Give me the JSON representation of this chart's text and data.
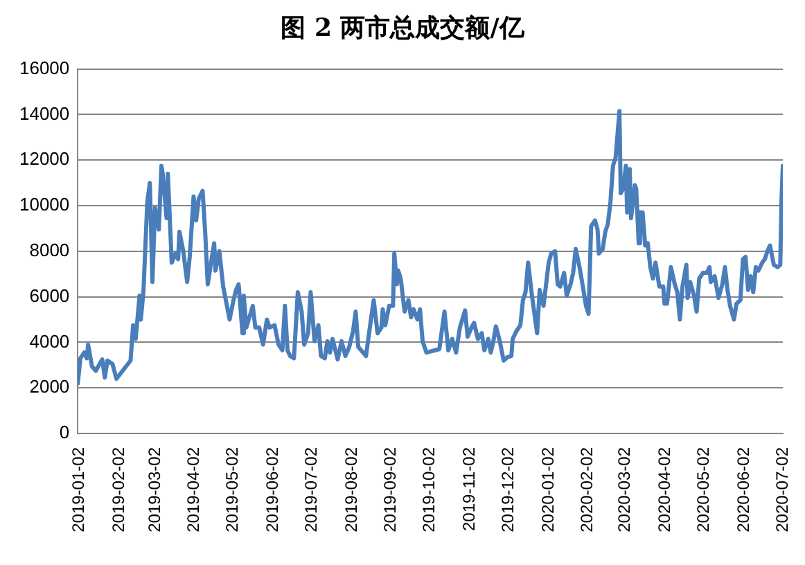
{
  "chart_data": {
    "type": "line",
    "title": "图 2 两市总成交额/亿",
    "x": [
      "2019-01-02",
      "2019-01-04",
      "2019-01-07",
      "2019-01-09",
      "2019-01-10",
      "2019-01-13",
      "2019-01-16",
      "2019-01-21",
      "2019-01-23",
      "2019-01-25",
      "2019-01-29",
      "2019-02-01",
      "2019-02-12",
      "2019-02-14",
      "2019-02-16",
      "2019-02-19",
      "2019-02-20",
      "2019-02-22",
      "2019-02-25",
      "2019-02-27",
      "2019-03-01",
      "2019-03-03",
      "2019-03-06",
      "2019-03-08",
      "2019-03-09",
      "2019-03-12",
      "2019-03-13",
      "2019-03-16",
      "2019-03-19",
      "2019-03-21",
      "2019-03-22",
      "2019-03-25",
      "2019-03-28",
      "2019-03-30",
      "2019-04-02",
      "2019-04-04",
      "2019-04-06",
      "2019-04-09",
      "2019-04-11",
      "2019-04-13",
      "2019-04-16",
      "2019-04-18",
      "2019-04-19",
      "2019-04-22",
      "2019-04-25",
      "2019-04-30",
      "2019-05-03",
      "2019-05-05",
      "2019-05-07",
      "2019-05-10",
      "2019-05-11",
      "2019-05-13",
      "2019-05-18",
      "2019-05-20",
      "2019-05-23",
      "2019-05-26",
      "2019-05-29",
      "2019-05-31",
      "2019-06-04",
      "2019-06-07",
      "2019-06-10",
      "2019-06-12",
      "2019-06-14",
      "2019-06-16",
      "2019-06-19",
      "2019-06-22",
      "2019-06-25",
      "2019-06-27",
      "2019-06-30",
      "2019-07-02",
      "2019-07-05",
      "2019-07-08",
      "2019-07-10",
      "2019-07-13",
      "2019-07-15",
      "2019-07-17",
      "2019-07-19",
      "2019-07-23",
      "2019-07-26",
      "2019-07-29",
      "2019-08-01",
      "2019-08-04",
      "2019-08-06",
      "2019-08-08",
      "2019-08-14",
      "2019-08-17",
      "2019-08-20",
      "2019-08-23",
      "2019-08-26",
      "2019-08-27",
      "2019-08-29",
      "2019-09-01",
      "2019-09-04",
      "2019-09-05",
      "2019-09-07",
      "2019-09-08",
      "2019-09-10",
      "2019-09-13",
      "2019-09-16",
      "2019-09-18",
      "2019-09-20",
      "2019-09-23",
      "2019-09-25",
      "2019-09-27",
      "2019-09-30",
      "2019-10-10",
      "2019-10-14",
      "2019-10-17",
      "2019-10-20",
      "2019-10-23",
      "2019-10-26",
      "2019-10-30",
      "2019-11-01",
      "2019-11-04",
      "2019-11-06",
      "2019-11-09",
      "2019-11-12",
      "2019-11-14",
      "2019-11-17",
      "2019-11-19",
      "2019-11-21",
      "2019-11-23",
      "2019-11-26",
      "2019-11-29",
      "2019-12-02",
      "2019-12-05",
      "2019-12-06",
      "2019-12-09",
      "2019-12-12",
      "2019-12-14",
      "2019-12-16",
      "2019-12-18",
      "2019-12-21",
      "2019-12-25",
      "2019-12-27",
      "2019-12-30",
      "2020-01-01",
      "2020-01-03",
      "2020-01-05",
      "2020-01-08",
      "2020-01-10",
      "2020-01-12",
      "2020-01-15",
      "2020-01-17",
      "2020-01-20",
      "2020-01-22",
      "2020-01-24",
      "2020-01-27",
      "2020-01-30",
      "2020-02-01",
      "2020-02-03",
      "2020-02-05",
      "2020-02-08",
      "2020-02-10",
      "2020-02-11",
      "2020-02-14",
      "2020-02-16",
      "2020-02-18",
      "2020-02-20",
      "2020-02-22",
      "2020-02-24",
      "2020-02-27",
      "2020-02-28",
      "2020-03-01",
      "2020-03-03",
      "2020-03-04",
      "2020-03-06",
      "2020-03-07",
      "2020-03-10",
      "2020-03-11",
      "2020-03-13",
      "2020-03-14",
      "2020-03-16",
      "2020-03-18",
      "2020-03-20",
      "2020-03-22",
      "2020-03-24",
      "2020-03-26",
      "2020-03-29",
      "2020-04-01",
      "2020-04-02",
      "2020-04-04",
      "2020-04-07",
      "2020-04-10",
      "2020-04-12",
      "2020-04-14",
      "2020-04-16",
      "2020-04-19",
      "2020-04-20",
      "2020-04-22",
      "2020-04-25",
      "2020-04-27",
      "2020-04-29",
      "2020-05-02",
      "2020-05-05",
      "2020-05-07",
      "2020-05-08",
      "2020-05-11",
      "2020-05-14",
      "2020-05-17",
      "2020-05-19",
      "2020-05-21",
      "2020-05-23",
      "2020-05-26",
      "2020-05-28",
      "2020-05-31",
      "2020-06-02",
      "2020-06-04",
      "2020-06-06",
      "2020-06-08",
      "2020-06-10",
      "2020-06-12",
      "2020-06-14",
      "2020-06-17",
      "2020-06-19",
      "2020-06-21",
      "2020-06-23",
      "2020-06-26",
      "2020-06-29",
      "2020-07-01",
      "2020-07-02",
      "2020-07-03"
    ],
    "series": [
      {
        "color": "#4a7ebb",
        "values": [
          2200,
          3300,
          3550,
          3300,
          3900,
          2950,
          2750,
          3250,
          2450,
          3200,
          3050,
          2400,
          3200,
          4750,
          4150,
          6050,
          5000,
          6200,
          10150,
          11000,
          6650,
          9900,
          8950,
          11750,
          11400,
          9450,
          11400,
          7500,
          7900,
          7650,
          8850,
          8000,
          6650,
          7750,
          10400,
          9350,
          10300,
          10650,
          8850,
          6550,
          7650,
          8350,
          7150,
          8000,
          6450,
          5000,
          5850,
          6300,
          6550,
          4400,
          6050,
          4650,
          5600,
          4650,
          4650,
          3900,
          5000,
          4650,
          4750,
          3900,
          3650,
          5600,
          3650,
          3400,
          3300,
          6200,
          5350,
          3900,
          4400,
          6200,
          4050,
          4750,
          3400,
          3300,
          4050,
          3550,
          4150,
          3250,
          4050,
          3400,
          3800,
          4500,
          5350,
          3800,
          3400,
          4650,
          5850,
          4400,
          4650,
          5450,
          4750,
          5600,
          5600,
          7900,
          6550,
          7150,
          6800,
          5350,
          5850,
          5100,
          5450,
          5000,
          5450,
          4050,
          3550,
          3700,
          5350,
          3650,
          4150,
          3550,
          4650,
          5400,
          4250,
          4650,
          4850,
          4150,
          4400,
          3650,
          4150,
          3550,
          4050,
          4700,
          4050,
          3200,
          3350,
          3400,
          4150,
          4500,
          4750,
          5850,
          6200,
          7500,
          6050,
          4400,
          6300,
          5600,
          6550,
          7500,
          7900,
          8000,
          6550,
          6450,
          7050,
          6050,
          6550,
          7050,
          8100,
          7300,
          6300,
          5600,
          5250,
          9100,
          9350,
          8950,
          7900,
          8100,
          8850,
          9200,
          10150,
          11750,
          12100,
          14150,
          10550,
          10750,
          11750,
          9700,
          11600,
          9450,
          10900,
          10750,
          8350,
          9700,
          9700,
          8250,
          8350,
          7300,
          6800,
          7500,
          6450,
          6450,
          5700,
          5700,
          7300,
          6550,
          6200,
          5000,
          6450,
          7400,
          5950,
          6650,
          6050,
          5350,
          6800,
          7050,
          7050,
          7300,
          6650,
          6900,
          5950,
          6550,
          7300,
          6300,
          5600,
          5000,
          5700,
          5850,
          7650,
          7750,
          6300,
          6900,
          6200,
          7300,
          7150,
          7500,
          7650,
          8000,
          8250,
          7400,
          7300,
          7400,
          10300,
          11750
        ]
      }
    ],
    "xlim": [
      "2019-01-02",
      "2020-07-03"
    ],
    "xticks": [
      "2019-01-02",
      "2019-02-02",
      "2019-03-02",
      "2019-04-02",
      "2019-05-02",
      "2019-06-02",
      "2019-07-02",
      "2019-08-02",
      "2019-09-02",
      "2019-10-02",
      "2019-11-02",
      "2019-12-02",
      "2020-01-02",
      "2020-02-02",
      "2020-03-02",
      "2020-04-02",
      "2020-05-02",
      "2020-06-02",
      "2020-07-02"
    ],
    "ylim": [
      0,
      16000
    ],
    "yticks": [
      0,
      2000,
      4000,
      6000,
      8000,
      10000,
      12000,
      14000,
      16000
    ],
    "grid": "y",
    "legend": false,
    "marker": "none",
    "line_style": "solid"
  }
}
